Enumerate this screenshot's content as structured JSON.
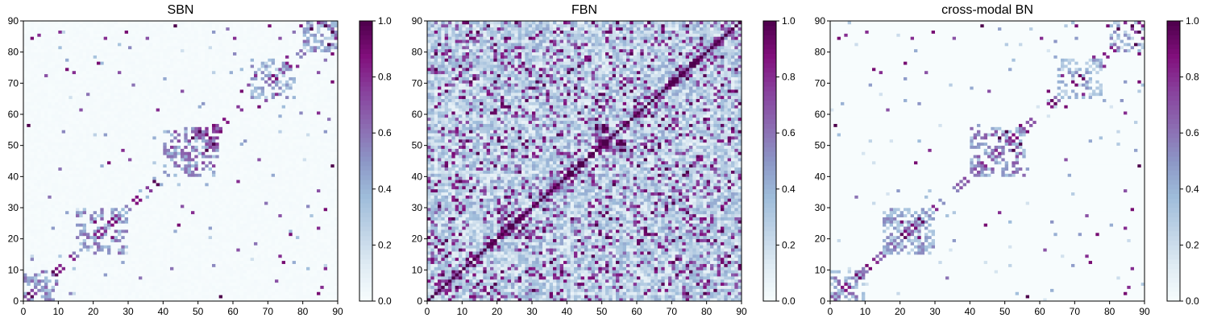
{
  "chart_data": [
    {
      "type": "heatmap",
      "title": "SBN",
      "xlim": [
        0,
        90
      ],
      "ylim": [
        0,
        90
      ],
      "matrix_size": 90,
      "xticks": [
        "0",
        "10",
        "20",
        "30",
        "40",
        "50",
        "60",
        "70",
        "80",
        "90"
      ],
      "yticks": [
        "0",
        "10",
        "20",
        "30",
        "40",
        "50",
        "60",
        "70",
        "80",
        "90"
      ],
      "colormap": "BuPu",
      "colorbar": {
        "min": 0.0,
        "max": 1.0,
        "ticks": [
          "0.0",
          "0.2",
          "0.4",
          "0.6",
          "0.8",
          "1.0"
        ]
      },
      "background": 0.02,
      "blocks": [
        {
          "i": [
            0,
            10
          ],
          "j": [
            0,
            10
          ],
          "value": 0.55
        },
        {
          "i": [
            15,
            30
          ],
          "j": [
            15,
            30
          ],
          "value": 0.5
        },
        {
          "i": [
            40,
            56
          ],
          "j": [
            40,
            56
          ],
          "value": 0.6
        },
        {
          "i": [
            65,
            78
          ],
          "j": [
            65,
            78
          ],
          "value": 0.45
        },
        {
          "i": [
            80,
            90
          ],
          "j": [
            80,
            90
          ],
          "value": 0.5
        }
      ],
      "sparse_entries": [
        [
          1,
          56,
          1.0
        ],
        [
          2,
          84,
          0.9
        ],
        [
          4,
          85,
          0.8
        ],
        [
          6,
          72,
          0.7
        ],
        [
          7,
          33,
          0.6
        ],
        [
          10,
          86,
          0.8
        ],
        [
          12,
          74,
          0.9
        ],
        [
          14,
          73,
          0.8
        ],
        [
          16,
          61,
          0.7
        ],
        [
          18,
          66,
          0.6
        ],
        [
          20,
          25,
          0.9
        ],
        [
          21,
          76,
          0.9
        ],
        [
          23,
          84,
          0.8
        ],
        [
          27,
          73,
          0.7
        ],
        [
          28,
          48,
          0.8
        ],
        [
          29,
          86,
          0.9
        ],
        [
          31,
          69,
          0.6
        ],
        [
          35,
          84,
          0.7
        ],
        [
          38,
          61,
          0.8
        ],
        [
          43,
          88,
          1.0
        ],
        [
          45,
          67,
          0.7
        ],
        [
          48,
          52,
          1.0
        ],
        [
          50,
          54,
          1.0
        ],
        [
          54,
          56,
          0.9
        ],
        [
          58,
          87,
          0.6
        ],
        [
          60,
          84,
          0.8
        ],
        [
          62,
          67,
          0.9
        ],
        [
          64,
          69,
          0.7
        ],
        [
          66,
          72,
          0.8
        ],
        [
          70,
          88,
          0.9
        ],
        [
          73,
          84,
          0.7
        ],
        [
          75,
          78,
          0.8
        ],
        [
          77,
          86,
          0.6
        ],
        [
          79,
          88,
          0.9
        ],
        [
          82,
          87,
          1.0
        ],
        [
          84,
          89,
          0.8
        ],
        [
          86,
          88,
          1.0
        ],
        [
          10,
          42,
          0.6
        ],
        [
          24,
          44,
          0.9
        ],
        [
          30,
          45,
          0.7
        ]
      ],
      "seed": 7
    },
    {
      "type": "heatmap",
      "title": "FBN",
      "xlim": [
        0,
        90
      ],
      "ylim": [
        0,
        90
      ],
      "matrix_size": 90,
      "xticks": [
        "0",
        "10",
        "20",
        "30",
        "40",
        "50",
        "60",
        "70",
        "80",
        "90"
      ],
      "yticks": [
        "0",
        "10",
        "20",
        "30",
        "40",
        "50",
        "60",
        "70",
        "80",
        "90"
      ],
      "colormap": "BuPu",
      "colorbar": {
        "min": 0.0,
        "max": 1.0,
        "ticks": [
          "0.0",
          "0.2",
          "0.4",
          "0.6",
          "0.8",
          "1.0"
        ]
      },
      "background": 0.35,
      "blocks": [
        {
          "i": [
            20,
            30
          ],
          "j": [
            20,
            30
          ],
          "value": 0.85
        },
        {
          "i": [
            35,
            42
          ],
          "j": [
            35,
            42
          ],
          "value": 0.85
        },
        {
          "i": [
            48,
            57
          ],
          "j": [
            48,
            57
          ],
          "value": 0.95
        },
        {
          "i": [
            60,
            68
          ],
          "j": [
            60,
            68
          ],
          "value": 0.7
        },
        {
          "i": [
            72,
            76
          ],
          "j": [
            72,
            76
          ],
          "value": 1.0
        },
        {
          "i": [
            84,
            90
          ],
          "j": [
            84,
            90
          ],
          "value": 0.8
        }
      ],
      "sparse_entries": [
        [
          40,
          73,
          1.0
        ],
        [
          41,
          74,
          1.0
        ],
        [
          35,
          83,
          0.9
        ],
        [
          12,
          48,
          0.9
        ],
        [
          5,
          90,
          0.8
        ],
        [
          30,
          60,
          0.9
        ],
        [
          16,
          73,
          0.8
        ],
        [
          55,
          80,
          0.9
        ],
        [
          62,
          88,
          0.8
        ],
        [
          2,
          20,
          0.9
        ]
      ],
      "seed": 23
    },
    {
      "type": "heatmap",
      "title": "cross-modal BN",
      "xlim": [
        0,
        90
      ],
      "ylim": [
        0,
        90
      ],
      "matrix_size": 90,
      "xticks": [
        "0",
        "10",
        "20",
        "30",
        "40",
        "50",
        "60",
        "70",
        "80",
        "90"
      ],
      "yticks": [
        "0",
        "10",
        "20",
        "30",
        "40",
        "50",
        "60",
        "70",
        "80",
        "90"
      ],
      "colormap": "BuPu",
      "colorbar": {
        "min": 0.0,
        "max": 1.0,
        "ticks": [
          "0.0",
          "0.2",
          "0.4",
          "0.6",
          "0.8",
          "1.0"
        ]
      },
      "background": 0.0,
      "blocks": [
        {
          "i": [
            0,
            10
          ],
          "j": [
            0,
            10
          ],
          "value": 0.5
        },
        {
          "i": [
            15,
            30
          ],
          "j": [
            15,
            30
          ],
          "value": 0.45
        },
        {
          "i": [
            40,
            56
          ],
          "j": [
            40,
            56
          ],
          "value": 0.55
        },
        {
          "i": [
            65,
            78
          ],
          "j": [
            65,
            78
          ],
          "value": 0.4
        },
        {
          "i": [
            80,
            90
          ],
          "j": [
            80,
            90
          ],
          "value": 0.45
        }
      ],
      "sparse_entries": [
        [
          1,
          56,
          1.0
        ],
        [
          2,
          84,
          0.9
        ],
        [
          4,
          85,
          0.8
        ],
        [
          7,
          33,
          0.6
        ],
        [
          10,
          86,
          0.8
        ],
        [
          12,
          74,
          0.9
        ],
        [
          14,
          73,
          0.8
        ],
        [
          16,
          61,
          0.7
        ],
        [
          20,
          25,
          0.9
        ],
        [
          21,
          76,
          0.9
        ],
        [
          23,
          84,
          0.8
        ],
        [
          27,
          73,
          0.7
        ],
        [
          28,
          48,
          0.8
        ],
        [
          29,
          86,
          0.9
        ],
        [
          35,
          84,
          0.7
        ],
        [
          43,
          88,
          1.0
        ],
        [
          45,
          67,
          0.7
        ],
        [
          48,
          52,
          1.0
        ],
        [
          50,
          54,
          1.0
        ],
        [
          54,
          56,
          0.9
        ],
        [
          60,
          84,
          0.8
        ],
        [
          62,
          67,
          0.9
        ],
        [
          66,
          72,
          0.8
        ],
        [
          70,
          88,
          0.9
        ],
        [
          75,
          78,
          0.8
        ],
        [
          79,
          88,
          0.9
        ],
        [
          82,
          87,
          1.0
        ],
        [
          84,
          89,
          0.8
        ],
        [
          86,
          88,
          1.0
        ],
        [
          24,
          44,
          0.9
        ]
      ],
      "seed": 11
    }
  ]
}
